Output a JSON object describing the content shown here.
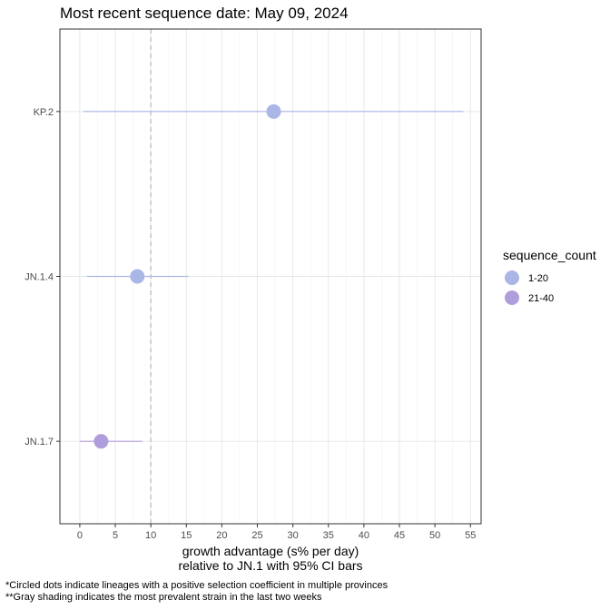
{
  "chart_data": {
    "type": "scatter",
    "title": "Most recent sequence date: May 09, 2024",
    "xlabel_line1": "growth advantage (s% per day)",
    "xlabel_line2": "relative to  JN.1  with 95% CI bars",
    "ylabel": "",
    "xlim": [
      -2.8,
      56.5
    ],
    "x_ticks": [
      0,
      5,
      10,
      15,
      20,
      25,
      30,
      35,
      40,
      45,
      50,
      55
    ],
    "reference_line_x": 10,
    "grid": true,
    "categories": [
      "KP.2",
      "JN.1.4",
      "JN.1.7"
    ],
    "points": [
      {
        "lineage": "KP.2",
        "value": 27.3,
        "ci_low": 0.5,
        "ci_high": 54.0,
        "sequence_count": "1-20"
      },
      {
        "lineage": "JN.1.4",
        "value": 8.1,
        "ci_low": 1.0,
        "ci_high": 15.3,
        "sequence_count": "1-20"
      },
      {
        "lineage": "JN.1.7",
        "value": 3.0,
        "ci_low": 0.0,
        "ci_high": 8.8,
        "sequence_count": "21-40"
      }
    ],
    "legend": {
      "title": "sequence_count",
      "position": "right",
      "entries": [
        {
          "label": "1-20",
          "color": "#aab6e6"
        },
        {
          "label": "21-40",
          "color": "#b09ddc"
        }
      ]
    }
  },
  "footnotes": [
    "*Circled dots indicate lineages with a positive selection coefficient in multiple provinces",
    "**Gray shading indicates the most prevalent strain in the last two weeks"
  ]
}
